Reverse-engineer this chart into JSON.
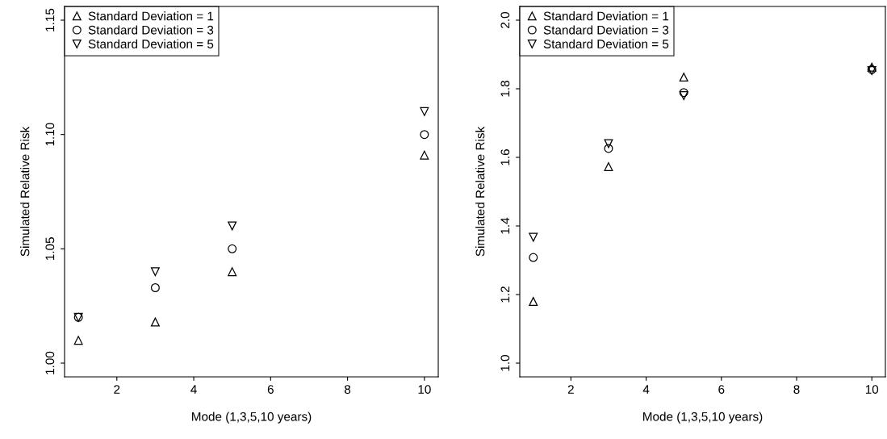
{
  "chart_data": [
    {
      "type": "scatter",
      "xlabel": "Mode (1,3,5,10 years)",
      "ylabel": "Simulated Relative Risk",
      "x": [
        1,
        3,
        5,
        10
      ],
      "xlim": [
        0.64,
        10.36
      ],
      "xticks": [
        2,
        4,
        6,
        8,
        10
      ],
      "ylim": [
        0.994,
        1.156
      ],
      "yticks": [
        {
          "value": 1.0,
          "label": "1.00"
        },
        {
          "value": 1.05,
          "label": "1.05"
        },
        {
          "value": 1.1,
          "label": "1.10"
        },
        {
          "value": 1.15,
          "label": "1.15"
        }
      ],
      "grid": false,
      "legend": "top left",
      "series": [
        {
          "name": "Standard Deviation = 1",
          "color": "#000000",
          "marker": "triangle",
          "values": [
            1.01,
            1.018,
            1.04,
            1.091
          ]
        },
        {
          "name": "Standard Deviation = 3",
          "color": "#000000",
          "marker": "circle",
          "values": [
            1.02,
            1.033,
            1.05,
            1.1
          ]
        },
        {
          "name": "Standard Deviation = 5",
          "color": "#000000",
          "marker": "triangle_down",
          "values": [
            1.02,
            1.04,
            1.06,
            1.11
          ]
        }
      ]
    },
    {
      "type": "scatter",
      "xlabel": "Mode (1,3,5,10 years)",
      "ylabel": "Simulated Relative Risk",
      "x": [
        1,
        3,
        5,
        10
      ],
      "xlim": [
        0.64,
        10.36
      ],
      "xticks": [
        2,
        4,
        6,
        8,
        10
      ],
      "ylim": [
        0.96,
        2.04
      ],
      "yticks": [
        {
          "value": 1.0,
          "label": "1.0"
        },
        {
          "value": 1.2,
          "label": "1.2"
        },
        {
          "value": 1.4,
          "label": "1.4"
        },
        {
          "value": 1.6,
          "label": "1.6"
        },
        {
          "value": 1.8,
          "label": "1.8"
        },
        {
          "value": 2.0,
          "label": "2.0"
        }
      ],
      "grid": false,
      "legend": "top left",
      "series": [
        {
          "name": "Standard Deviation = 1",
          "color": "#000000",
          "marker": "triangle",
          "values": [
            1.18,
            1.573,
            1.834,
            1.863
          ]
        },
        {
          "name": "Standard Deviation = 3",
          "color": "#000000",
          "marker": "circle",
          "values": [
            1.308,
            1.626,
            1.789,
            1.856
          ]
        },
        {
          "name": "Standard Deviation = 5",
          "color": "#000000",
          "marker": "triangle_down",
          "values": [
            1.367,
            1.64,
            1.78,
            1.853
          ]
        }
      ]
    }
  ]
}
